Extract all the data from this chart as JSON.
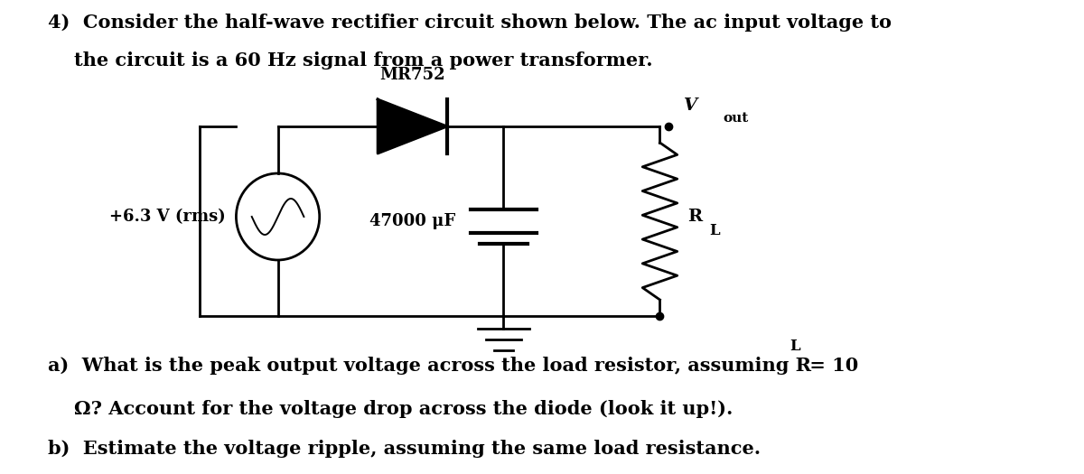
{
  "background_color": "#ffffff",
  "title_line1": "4)  Consider the half-wave rectifier circuit shown below. The ac input voltage to",
  "title_line2": "    the circuit is a 60 Hz signal from a power transformer.",
  "diode_label": "MR752",
  "source_label": "+6.3 V (rms)",
  "cap_label": "47000 μF",
  "vout_label": "V",
  "vout_sub": "out",
  "rl_label": "R",
  "rl_sub": "L",
  "question_a": "a)  What is the peak output voltage across the load resistor, assuming R",
  "question_a_sub": "L",
  "question_a_end": " = 10",
  "question_a2": "    Ω? Account for the voltage drop across the diode (look it up!).",
  "question_b": "b)  Estimate the voltage ripple, assuming the same load resistance.",
  "font_size_text": 15,
  "font_size_label": 13,
  "circuit_color": "#000000"
}
